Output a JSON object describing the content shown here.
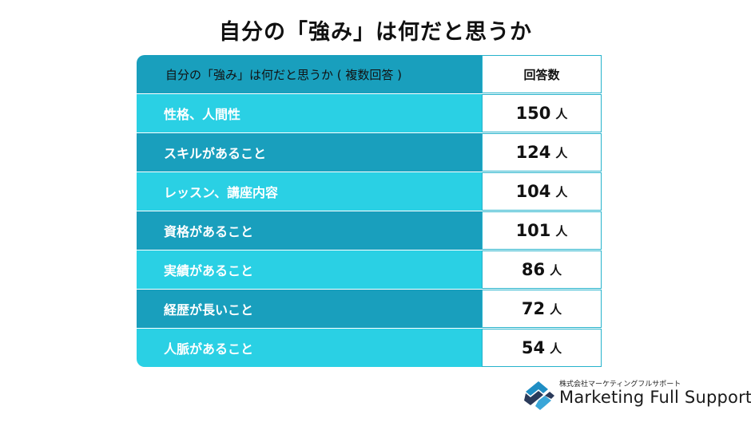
{
  "title": "自分の「強み」は何だと思うか",
  "table": {
    "header": {
      "category": "自分の「強み」は何だと思うか ( 複数回答 )",
      "count": "回答数"
    },
    "unit": "人",
    "rows": [
      {
        "label": "性格、人間性",
        "value": "150"
      },
      {
        "label": "スキルがあること",
        "value": "124"
      },
      {
        "label": "レッスン、講座内容",
        "value": "104"
      },
      {
        "label": "資格があること",
        "value": "101"
      },
      {
        "label": "実績があること",
        "value": "86"
      },
      {
        "label": "経歴が長いこと",
        "value": "72"
      },
      {
        "label": "人脈があること",
        "value": "54"
      }
    ],
    "colors": {
      "light_row": "#2ad0e4",
      "dark_row": "#199fbd",
      "border": "#26b3cc"
    }
  },
  "logo": {
    "company": "株式会社マーケティングフルサポート",
    "brand": "Marketing Full Support",
    "icon": "mfs-logo-icon"
  }
}
